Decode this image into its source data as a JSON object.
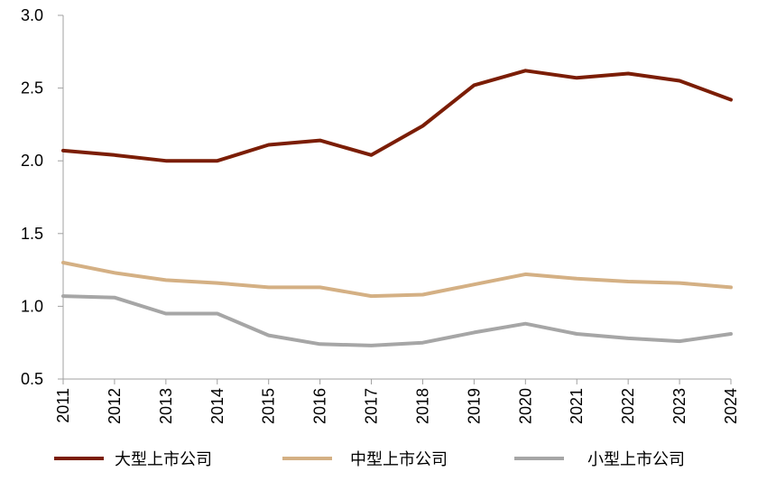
{
  "chart_data": {
    "type": "line",
    "title": "",
    "xlabel": "",
    "ylabel": "",
    "categories": [
      "2011",
      "2012",
      "2013",
      "2014",
      "2015",
      "2016",
      "2017",
      "2018",
      "2019",
      "2020",
      "2021",
      "2022",
      "2023",
      "2024"
    ],
    "ylim": [
      0.5,
      3.0
    ],
    "yticks": [
      "0.5",
      "1.0",
      "1.5",
      "2.0",
      "2.5",
      "3.0"
    ],
    "grid": false,
    "legend_position": "bottom",
    "series": [
      {
        "name": "大型上市公司",
        "color": "#7b1d05",
        "values": [
          2.07,
          2.04,
          2.0,
          2.0,
          2.11,
          2.14,
          2.04,
          2.24,
          2.52,
          2.62,
          2.57,
          2.6,
          2.55,
          2.42
        ]
      },
      {
        "name": "中型上市公司",
        "color": "#d4b084",
        "values": [
          1.3,
          1.23,
          1.18,
          1.16,
          1.13,
          1.13,
          1.07,
          1.08,
          1.15,
          1.22,
          1.19,
          1.17,
          1.16,
          1.13
        ]
      },
      {
        "name": "小型上市公司",
        "color": "#a6a6a6",
        "values": [
          1.07,
          1.06,
          0.95,
          0.95,
          0.8,
          0.74,
          0.73,
          0.75,
          0.82,
          0.88,
          0.81,
          0.78,
          0.76,
          0.81
        ]
      }
    ]
  }
}
